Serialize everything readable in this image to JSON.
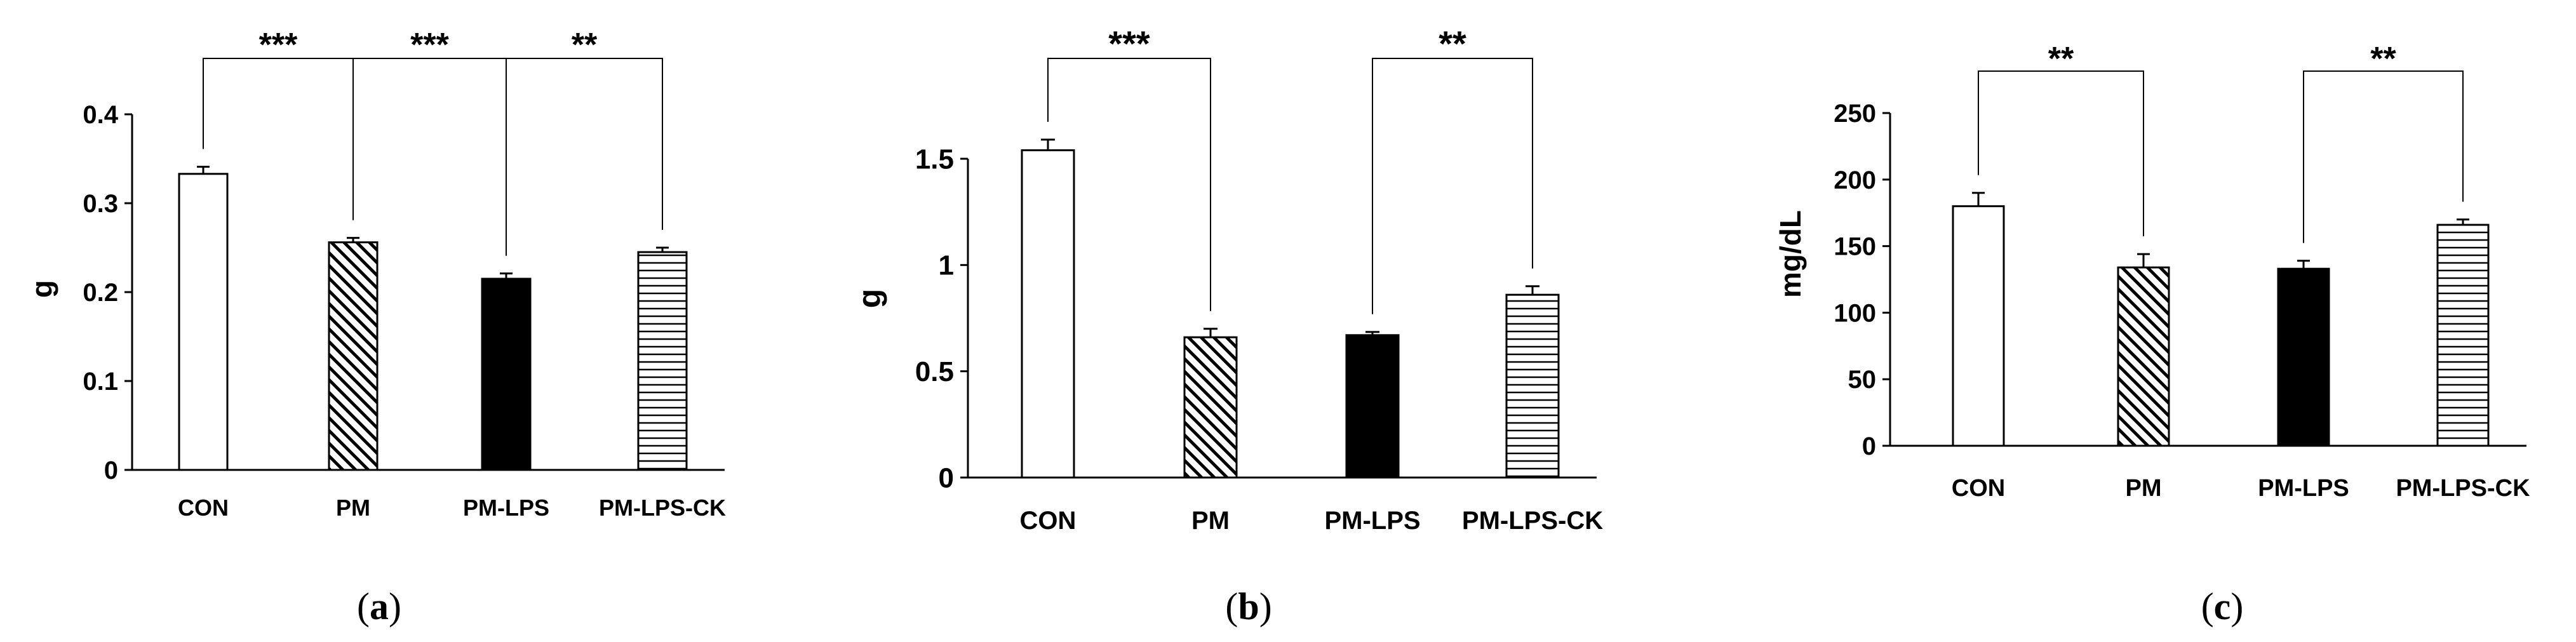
{
  "chart_data": [
    {
      "type": "bar",
      "panel_label": "(a)",
      "panel_letter": "a",
      "ylabel": "g",
      "ylim": [
        0,
        0.4
      ],
      "yticks": [
        "0",
        "0.1",
        "0.2",
        "0.3",
        "0.4"
      ],
      "ytick_values": [
        0,
        0.1,
        0.2,
        0.3,
        0.4
      ],
      "categories": [
        "CON",
        "PM",
        "PM-LPS",
        "PM-LPS-CK"
      ],
      "values": [
        0.333,
        0.256,
        0.215,
        0.245
      ],
      "errors": [
        0.008,
        0.005,
        0.006,
        0.005
      ],
      "fills": [
        "white",
        "diagonal",
        "black",
        "horizontal"
      ],
      "significance": [
        {
          "from": 0,
          "to": 1,
          "label": "***"
        },
        {
          "from": 1,
          "to": 2,
          "label": "***"
        },
        {
          "from": 2,
          "to": 3,
          "label": "**"
        }
      ]
    },
    {
      "type": "bar",
      "panel_label": "(b)",
      "panel_letter": "b",
      "ylabel": "g",
      "ylim": [
        0,
        1.5
      ],
      "yticks": [
        "0",
        "0.5",
        "1",
        "1.5"
      ],
      "ytick_values": [
        0,
        0.5,
        1,
        1.5
      ],
      "categories": [
        "CON",
        "PM",
        "PM-LPS",
        "PM-LPS-CK"
      ],
      "values": [
        1.54,
        0.66,
        0.67,
        0.86
      ],
      "errors": [
        0.05,
        0.04,
        0.015,
        0.04
      ],
      "fills": [
        "white",
        "diagonal",
        "black",
        "horizontal"
      ],
      "significance": [
        {
          "from": 0,
          "to": 1,
          "label": "***"
        },
        {
          "from": 2,
          "to": 3,
          "label": "**"
        }
      ]
    },
    {
      "type": "bar",
      "panel_label": "(c)",
      "panel_letter": "c",
      "ylabel": "mg/dL",
      "ylim": [
        0,
        250
      ],
      "yticks": [
        "0",
        "50",
        "100",
        "150",
        "200",
        "250"
      ],
      "ytick_values": [
        0,
        50,
        100,
        150,
        200,
        250
      ],
      "categories": [
        "CON",
        "PM",
        "PM-LPS",
        "PM-LPS-CK"
      ],
      "values": [
        180,
        134,
        133,
        166
      ],
      "errors": [
        10,
        10,
        6,
        4
      ],
      "fills": [
        "white",
        "diagonal",
        "black",
        "horizontal"
      ],
      "significance": [
        {
          "from": 0,
          "to": 1,
          "label": "**"
        },
        {
          "from": 2,
          "to": 3,
          "label": "**"
        }
      ]
    }
  ]
}
